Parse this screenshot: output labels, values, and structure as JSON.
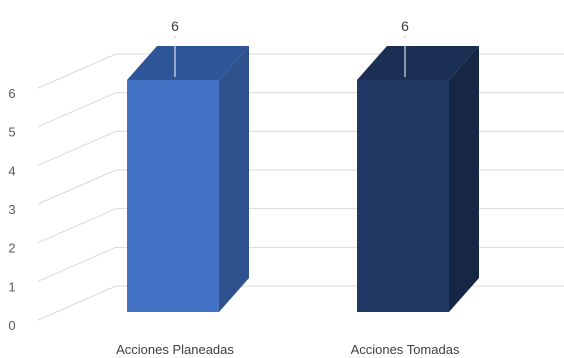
{
  "chart_data": {
    "type": "bar",
    "title": "",
    "xlabel": "",
    "ylabel": "",
    "categories": [
      "Acciones Planeadas",
      "Acciones Tomadas"
    ],
    "values": [
      6,
      6
    ],
    "ylim": [
      0,
      6
    ],
    "yticks": [
      "0",
      "1",
      "2",
      "3",
      "4",
      "5",
      "6"
    ],
    "data_labels": [
      "6",
      "6"
    ],
    "colors": {
      "bar_front": [
        "#4472c4",
        "#203864"
      ],
      "bar_side": [
        "#2f528f",
        "#162746"
      ],
      "bar_top": [
        "#2e5597",
        "#1b2f54"
      ],
      "grid": "#d9d9d9",
      "text": "#595959"
    },
    "grid": true,
    "style": "3d-column",
    "legend": "none"
  }
}
